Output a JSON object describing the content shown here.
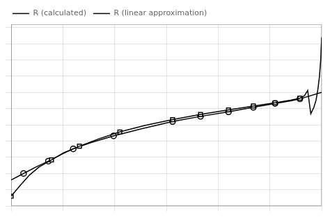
{
  "chart_data": {
    "type": "line",
    "series": [
      {
        "name": "R (calculated)",
        "color": "#000000",
        "line_style": "solid",
        "marker": "none",
        "x": [
          0.0,
          0.03,
          0.06,
          0.09,
          0.13,
          0.17,
          0.22,
          0.28,
          0.35,
          0.43,
          0.52,
          0.61,
          0.7,
          0.78,
          0.85,
          0.9,
          0.93,
          0.945,
          0.955,
          0.965,
          0.975,
          0.982,
          0.988,
          0.993,
          0.997,
          1.0
        ],
        "values": [
          -0.55,
          -0.38,
          -0.22,
          -0.1,
          0.01,
          0.12,
          0.22,
          0.33,
          0.44,
          0.54,
          0.63,
          0.71,
          0.78,
          0.84,
          0.89,
          0.93,
          0.96,
          1.0,
          1.08,
          0.72,
          0.82,
          0.93,
          1.1,
          1.3,
          1.55,
          1.9
        ]
      },
      {
        "color": "#000000",
        "line_style": "none",
        "marker": "square",
        "x": [
          0.0,
          0.13,
          0.22,
          0.35,
          0.52,
          0.61,
          0.7,
          0.78,
          0.85,
          0.93
        ],
        "values": [
          -0.55,
          0.01,
          0.22,
          0.44,
          0.63,
          0.71,
          0.78,
          0.84,
          0.89,
          0.96
        ]
      },
      {
        "name": "R (linear approximation)",
        "color": "#000000",
        "line_style": "solid",
        "marker": "none",
        "x": [
          0.0,
          0.04,
          0.08,
          0.12,
          0.16,
          0.2,
          0.26,
          0.33,
          0.42,
          0.52,
          0.61,
          0.7,
          0.78,
          0.85,
          0.9,
          0.93,
          1.0
        ],
        "values": [
          -0.3,
          -0.2,
          -0.1,
          -0.01,
          0.09,
          0.18,
          0.28,
          0.38,
          0.49,
          0.6,
          0.68,
          0.75,
          0.82,
          0.88,
          0.92,
          0.95,
          1.05
        ]
      },
      {
        "color": "#000000",
        "line_style": "none",
        "marker": "circle",
        "x": [
          0.04,
          0.12,
          0.2,
          0.33,
          0.52,
          0.61,
          0.7,
          0.78,
          0.85,
          0.93
        ],
        "values": [
          -0.2,
          -0.01,
          0.18,
          0.38,
          0.6,
          0.68,
          0.75,
          0.82,
          0.88,
          0.95
        ]
      }
    ],
    "xlim": [
      0.0,
      1.0
    ],
    "ylim": [
      -0.7,
      2.1
    ],
    "xticks": [
      0.0,
      0.166,
      0.333,
      0.5,
      0.666,
      0.833,
      1.0
    ],
    "yticks": [
      -0.7,
      -0.45,
      -0.2,
      0.05,
      0.3,
      0.55,
      0.8,
      1.05,
      1.3,
      1.55,
      1.8,
      2.05
    ],
    "grid": true,
    "legend": "upper left",
    "tick_labels": false
  }
}
